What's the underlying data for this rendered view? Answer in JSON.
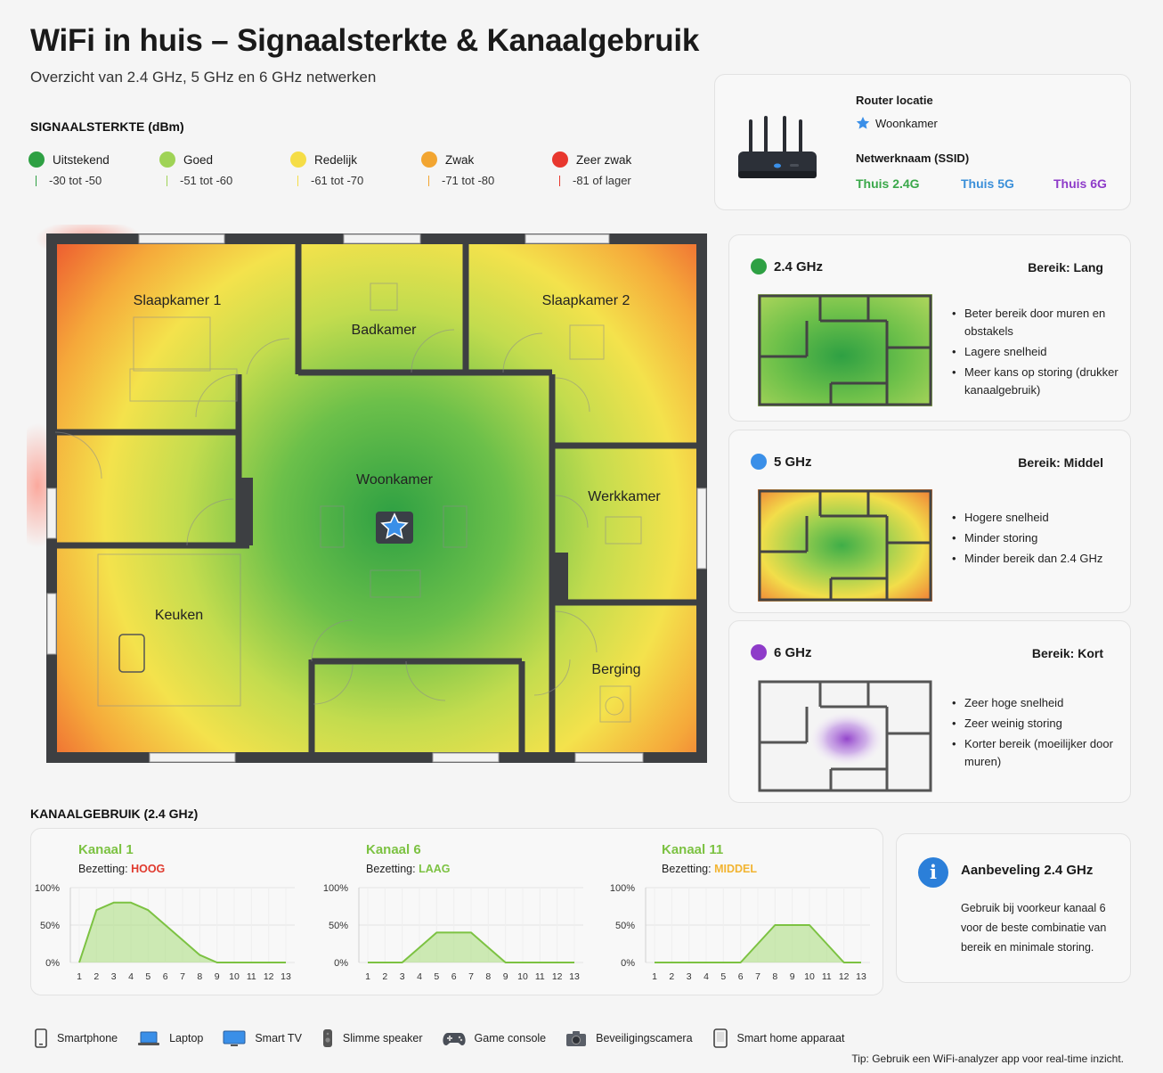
{
  "header": {
    "title": "WiFi in huis – Signaalsterkte & Kanaalgebruik",
    "subtitle": "Overzicht van 2.4 GHz, 5 GHz en 6 GHz netwerken"
  },
  "signal_legend": {
    "heading": "SIGNAALSTERKTE (dBm)",
    "items": [
      {
        "label": "Uitstekend",
        "range": "-30 tot -50",
        "color": "#2ea043"
      },
      {
        "label": "Goed",
        "range": "-51 tot -60",
        "color": "#9fd356"
      },
      {
        "label": "Redelijk",
        "range": "-61 tot -70",
        "color": "#f5dd47"
      },
      {
        "label": "Zwak",
        "range": "-71 tot -80",
        "color": "#f2a531"
      },
      {
        "label": "Zeer zwak",
        "range": "-81 of lager",
        "color": "#e8372e"
      }
    ]
  },
  "router": {
    "location_label": "Router locatie",
    "location": "Woonkamer",
    "ssid_label": "Netwerknaam (SSID)",
    "ssids": [
      {
        "name": "Thuis 2.4G",
        "color": "#3aa84a"
      },
      {
        "name": "Thuis 5G",
        "color": "#3a8fd9"
      },
      {
        "name": "Thuis 6G",
        "color": "#8e3bc9"
      }
    ]
  },
  "floorplan": {
    "rooms": [
      "Slaapkamer 1",
      "Badkamer",
      "Slaapkamer 2",
      "Woonkamer",
      "Werkkamer",
      "Keuken",
      "Berging"
    ]
  },
  "bands": [
    {
      "name": "2.4 GHz",
      "range": "Bereik: Lang",
      "color": "#2ea043",
      "points": [
        "Beter bereik door muren en obstakels",
        "Lagere snelheid",
        "Meer kans op storing (drukker kanaalgebruik)"
      ]
    },
    {
      "name": "5 GHz",
      "range": "Bereik: Middel",
      "color": "#3a8fe8",
      "points": [
        "Hogere snelheid",
        "Minder storing",
        "Minder bereik dan 2.4 GHz"
      ]
    },
    {
      "name": "6 GHz",
      "range": "Bereik: Kort",
      "color": "#8e3bc9",
      "points": [
        "Zeer hoge snelheid",
        "Zeer weinig storing",
        "Korter bereik (moeilijker door muren)"
      ]
    }
  ],
  "channels": {
    "heading": "KANAALGEBRUIK (2.4 GHz)",
    "occupancy_label": "Bezetting:",
    "y_ticks": [
      "100%",
      "50%",
      "0%"
    ],
    "x_ticks": [
      "1",
      "2",
      "3",
      "4",
      "5",
      "6",
      "7",
      "8",
      "9",
      "10",
      "11",
      "12",
      "13"
    ]
  },
  "chart_data": [
    {
      "type": "area",
      "title": "Kanaal 1",
      "occupancy": "HOOG",
      "occupancy_color": "#e03a2e",
      "x": [
        1,
        2,
        3,
        4,
        5,
        6,
        7,
        8,
        9,
        10,
        11,
        12,
        13
      ],
      "values": [
        0,
        70,
        80,
        80,
        70,
        50,
        30,
        10,
        0,
        0,
        0,
        0,
        0
      ],
      "ylim": [
        0,
        100
      ]
    },
    {
      "type": "area",
      "title": "Kanaal 6",
      "occupancy": "LAAG",
      "occupancy_color": "#7cc242",
      "x": [
        1,
        2,
        3,
        4,
        5,
        6,
        7,
        8,
        9,
        10,
        11,
        12,
        13
      ],
      "values": [
        0,
        0,
        0,
        20,
        40,
        40,
        40,
        20,
        0,
        0,
        0,
        0,
        0
      ],
      "ylim": [
        0,
        100
      ]
    },
    {
      "type": "area",
      "title": "Kanaal 11",
      "occupancy": "MIDDEL",
      "occupancy_color": "#f2b431",
      "x": [
        1,
        2,
        3,
        4,
        5,
        6,
        7,
        8,
        9,
        10,
        11,
        12,
        13
      ],
      "values": [
        0,
        0,
        0,
        0,
        0,
        0,
        25,
        50,
        50,
        50,
        25,
        0,
        0
      ],
      "ylim": [
        0,
        100
      ]
    }
  ],
  "advice": {
    "icon": "info-icon",
    "title": "Aanbeveling 2.4 GHz",
    "text": "Gebruik bij voorkeur kanaal 6 voor de beste combinatie van bereik en minimale storing."
  },
  "devices": [
    {
      "label": "Smartphone",
      "icon": "smartphone-icon"
    },
    {
      "label": "Laptop",
      "icon": "laptop-icon"
    },
    {
      "label": "Smart TV",
      "icon": "smart-tv-icon"
    },
    {
      "label": "Slimme speaker",
      "icon": "speaker-icon"
    },
    {
      "label": "Game console",
      "icon": "gamepad-icon"
    },
    {
      "label": "Beveiligingscamera",
      "icon": "camera-icon"
    },
    {
      "label": "Smart home apparaat",
      "icon": "smart-home-icon"
    }
  ],
  "tip": "Tip: Gebruik een WiFi-analyzer app voor real-time inzicht."
}
